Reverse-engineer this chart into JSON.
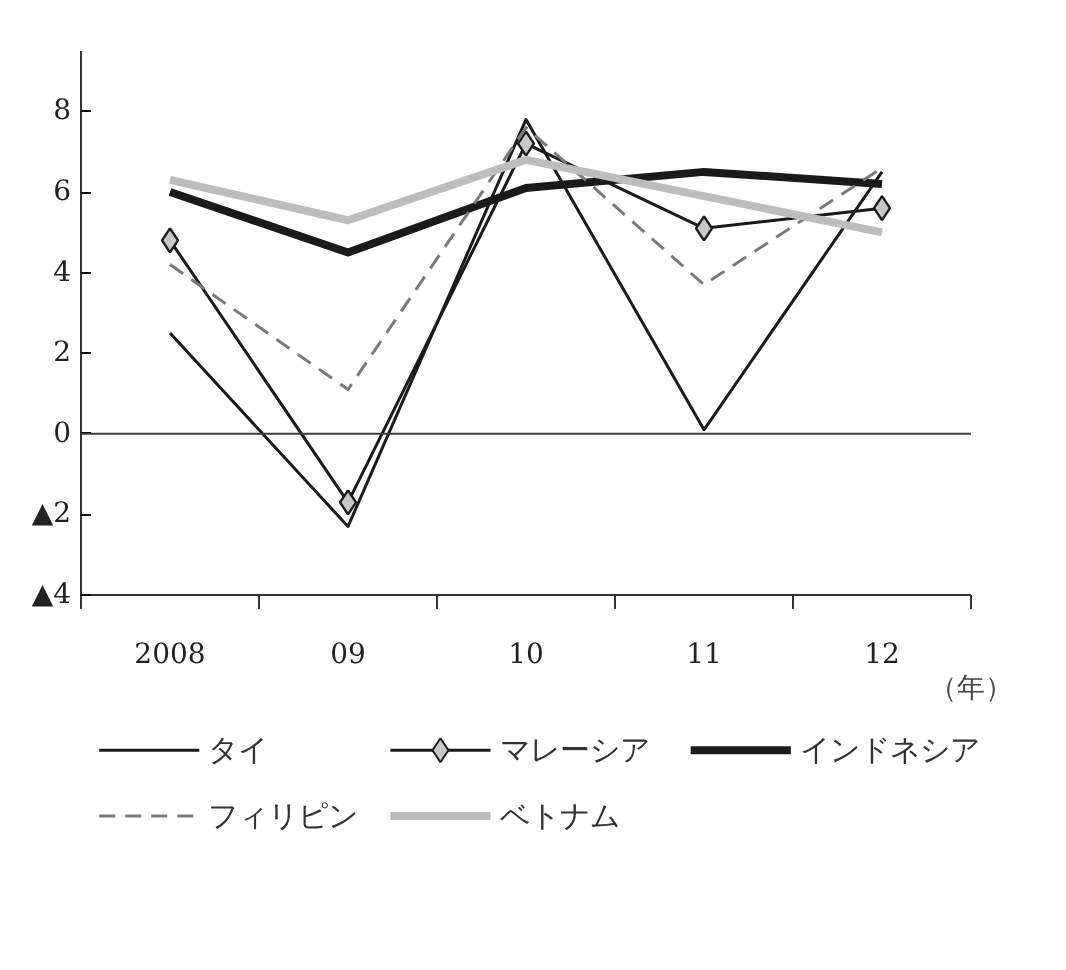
{
  "chart_data": {
    "type": "line",
    "xlabel": "（年）",
    "categories": [
      "2008",
      "09",
      "10",
      "11",
      "12"
    ],
    "ylim": [
      -4,
      9.5
    ],
    "yticks": [
      {
        "value": -4,
        "label": "▲4"
      },
      {
        "value": -2,
        "label": "▲2"
      },
      0,
      2,
      4,
      6,
      8
    ],
    "grid": false,
    "legend": "bottom",
    "line_style": "solid",
    "ref_lines": [
      {
        "axis": "y",
        "value": 0,
        "color": "#3c3c3c"
      }
    ],
    "series": [
      {
        "name": "タイ",
        "color": "#1a1a1a",
        "values": [
          2.5,
          -2.3,
          7.8,
          0.1,
          6.5
        ]
      },
      {
        "name": "マレーシア",
        "color": "#1a1a1a",
        "marker": "diamond",
        "values": [
          4.8,
          -1.7,
          7.2,
          5.1,
          5.6
        ]
      },
      {
        "name": "インドネシア",
        "color": "#1a1a1a",
        "values": [
          6.0,
          4.5,
          6.1,
          6.5,
          6.2
        ]
      },
      {
        "name": "フィリピン",
        "color": "#7a7a7a",
        "line_style": "dashed",
        "values": [
          4.2,
          1.1,
          7.6,
          3.7,
          6.6
        ]
      },
      {
        "name": "ベトナム",
        "color": "#bdbdbd",
        "values": [
          6.3,
          5.3,
          6.8,
          5.9,
          5.0
        ]
      }
    ]
  }
}
